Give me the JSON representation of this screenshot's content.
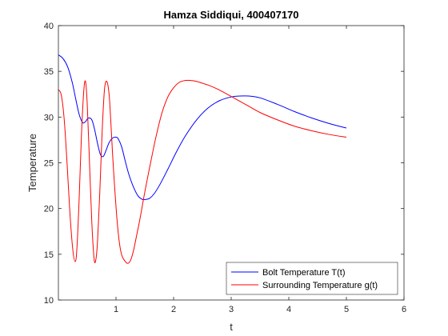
{
  "chart_data": {
    "type": "line",
    "title": "Hamza Siddiqui, 400407170",
    "xlabel": "t",
    "ylabel": "Temperature",
    "xlim": [
      0,
      6
    ],
    "ylim": [
      10,
      40
    ],
    "xticks": [
      1,
      2,
      3,
      4,
      5,
      6
    ],
    "yticks": [
      10,
      15,
      20,
      25,
      30,
      35,
      40
    ],
    "grid": false,
    "legend_position": "bottom-right",
    "series": [
      {
        "name": "Bolt Temperature T(t)",
        "color": "#0000ff",
        "x": [
          0,
          0.08,
          0.16,
          0.24,
          0.3,
          0.36,
          0.42,
          0.47,
          0.52,
          0.58,
          0.63,
          0.68,
          0.73,
          0.78,
          0.83,
          0.88,
          0.94,
          1.0,
          1.04,
          1.1,
          1.16,
          1.22,
          1.3,
          1.38,
          1.46,
          1.52,
          1.58,
          1.66,
          1.76,
          1.9,
          2.05,
          2.2,
          2.4,
          2.6,
          2.8,
          3.0,
          3.15,
          3.3,
          3.5,
          3.8,
          4.1,
          4.4,
          4.7,
          5.0
        ],
        "y": [
          36.8,
          36.4,
          35.5,
          33.8,
          32.0,
          30.3,
          29.4,
          29.5,
          29.9,
          29.7,
          28.6,
          27.1,
          25.9,
          25.7,
          26.4,
          27.2,
          27.7,
          27.8,
          27.6,
          26.7,
          25.2,
          23.8,
          22.4,
          21.4,
          21.0,
          21.0,
          21.1,
          21.6,
          22.6,
          24.3,
          26.2,
          27.9,
          29.7,
          31.0,
          31.8,
          32.2,
          32.3,
          32.3,
          32.1,
          31.4,
          30.6,
          29.9,
          29.3,
          28.8
        ]
      },
      {
        "name": "Surrounding Temperature g(t)",
        "color": "#ff0000",
        "x": [
          0,
          0.05,
          0.1,
          0.15,
          0.2,
          0.25,
          0.29,
          0.32,
          0.36,
          0.4,
          0.44,
          0.47,
          0.5,
          0.54,
          0.58,
          0.62,
          0.65,
          0.68,
          0.72,
          0.76,
          0.8,
          0.84,
          0.88,
          0.91,
          0.94,
          0.98,
          1.02,
          1.06,
          1.1,
          1.15,
          1.2,
          1.25,
          1.3,
          1.35,
          1.42,
          1.5,
          1.6,
          1.7,
          1.8,
          1.9,
          2.0,
          2.1,
          2.2,
          2.3,
          2.4,
          2.5,
          2.6,
          2.75,
          2.9,
          3.1,
          3.3,
          3.5,
          3.8,
          4.1,
          4.4,
          4.7,
          5.0
        ],
        "y": [
          33.0,
          32.4,
          29.8,
          25.0,
          19.5,
          15.5,
          14.2,
          15.5,
          21.0,
          28.0,
          32.8,
          33.9,
          31.5,
          25.0,
          18.5,
          14.5,
          14.4,
          16.5,
          22.0,
          28.5,
          33.0,
          33.9,
          32.5,
          29.5,
          26.0,
          22.0,
          18.6,
          16.2,
          14.9,
          14.3,
          14.0,
          14.3,
          15.3,
          16.8,
          19.0,
          21.8,
          25.0,
          28.0,
          30.5,
          32.2,
          33.2,
          33.8,
          34.0,
          34.0,
          33.9,
          33.7,
          33.5,
          33.1,
          32.6,
          31.9,
          31.2,
          30.5,
          29.7,
          29.0,
          28.5,
          28.1,
          27.8
        ]
      }
    ]
  }
}
